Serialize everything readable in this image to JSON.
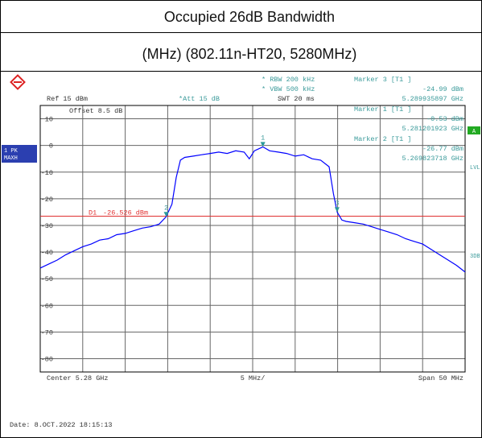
{
  "header": {
    "title": "Occupied 26dB Bandwidth",
    "subtitle": "(MHz) (802.11n-HT20, 5280MHz)"
  },
  "chart_data": {
    "type": "line",
    "settings_text": {
      "ref": "Ref  15 dBm",
      "att": "*Att  15 dB",
      "rbw": "* RBW  200 kHz",
      "vbw": "* VBW  500 kHz",
      "swt": "SWT  20 ms",
      "offset": "Offset  8.5 dB",
      "trace_mode_1": "1 PK",
      "trace_mode_2": "MAXH",
      "flag_a": "A",
      "flag_lvl": "LVL",
      "flag_3db": "3DB"
    },
    "x_labels": {
      "center": "Center  5.28 GHz",
      "div": "5 MHz/",
      "span": "Span  50 MHz"
    },
    "date": "Date: 8.OCT.2022  18:15:13",
    "xlim": [
      5255,
      5305
    ],
    "ylim": [
      -85,
      15
    ],
    "yticks": [
      10,
      0,
      -10,
      -20,
      -30,
      -40,
      -50,
      -60,
      -70,
      -80
    ],
    "grid": true,
    "x": [
      5255,
      5256,
      5257,
      5258,
      5259,
      5260,
      5261,
      5262,
      5263,
      5264,
      5265,
      5266,
      5267,
      5268,
      5269,
      5269.8,
      5270.5,
      5271,
      5271.5,
      5272,
      5273,
      5274,
      5275,
      5276,
      5277,
      5278,
      5279,
      5279.6,
      5280.2,
      5281.2,
      5282,
      5283,
      5284,
      5285,
      5286,
      5287,
      5288,
      5289,
      5289.5,
      5289.94,
      5290.5,
      5291,
      5292,
      5293,
      5294,
      5295,
      5296,
      5297,
      5298,
      5299,
      5300,
      5301,
      5302,
      5303,
      5304,
      5305
    ],
    "series": [
      {
        "name": "1",
        "color": "#0000ff",
        "values": [
          -46,
          -44.5,
          -43,
          -41,
          -39.5,
          -38,
          -37,
          -35.5,
          -35,
          -33.5,
          -33,
          -32,
          -31,
          -30.5,
          -29.5,
          -26.8,
          -22,
          -12,
          -5.5,
          -4.5,
          -4,
          -3.5,
          -3,
          -2.5,
          -3,
          -2,
          -2.5,
          -5,
          -2,
          -0.53,
          -2,
          -2.5,
          -3,
          -4,
          -3.5,
          -5,
          -5.5,
          -8,
          -18,
          -24.99,
          -28,
          -28.5,
          -29,
          -29.5,
          -30.5,
          -31.5,
          -32.5,
          -33.5,
          -35,
          -36,
          -37,
          -39,
          -41,
          -43,
          -45,
          -47.5
        ]
      }
    ],
    "display_line": {
      "label": "D1",
      "value": -26.526,
      "value_label": "-26.526 dBm",
      "color": "#e03030"
    },
    "markers": [
      {
        "id": "3",
        "header": "Marker 3 [T1 ]",
        "value": -24.99,
        "value_label": "-24.99 dBm",
        "freq": 5289.935897,
        "freq_label": "5.289935897 GHz"
      },
      {
        "id": "1",
        "header": "Marker 1 [T1 ]",
        "value": -0.53,
        "value_label": "-0.53 dBm",
        "freq": 5281.201923,
        "freq_label": "5.281201923 GHz"
      },
      {
        "id": "2",
        "header": "Marker 2 [T1 ]",
        "value": -26.77,
        "value_label": "-26.77 dBm",
        "freq": 5269.823718,
        "freq_label": "5.269823718 GHz"
      }
    ]
  }
}
